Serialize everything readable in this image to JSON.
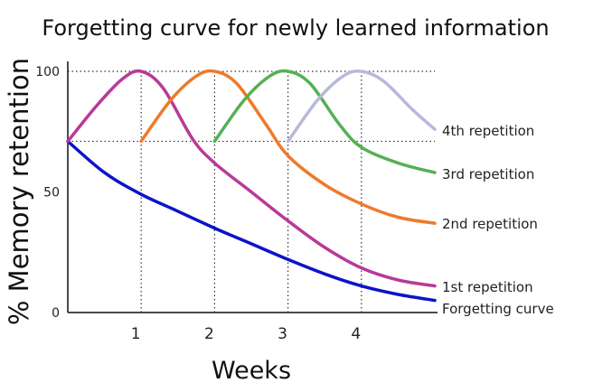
{
  "chart_data": {
    "type": "line",
    "title": "Forgetting curve for newly learned information",
    "xlabel": "Weeks",
    "ylabel": "% Memory retention",
    "xlim": [
      0,
      5
    ],
    "ylim": [
      0,
      100
    ],
    "xticks": [
      "1",
      "2",
      "3",
      "4"
    ],
    "yticks": [
      "0",
      "50",
      "100"
    ],
    "grid": "dotted reference lines",
    "series": [
      {
        "name": "Forgetting curve",
        "color": "#0a14c8",
        "points": [
          [
            0,
            71
          ],
          [
            0.5,
            58
          ],
          [
            1,
            49
          ],
          [
            1.5,
            42
          ],
          [
            2,
            35
          ],
          [
            2.5,
            28.5
          ],
          [
            3,
            22
          ],
          [
            3.5,
            16
          ],
          [
            4,
            11
          ],
          [
            4.5,
            7.5
          ],
          [
            5,
            5
          ]
        ]
      },
      {
        "name": "1st repetition",
        "color": "#b83a98",
        "points": [
          [
            0,
            71
          ],
          [
            0.4,
            86
          ],
          [
            0.75,
            97
          ],
          [
            1,
            100
          ],
          [
            1.3,
            93
          ],
          [
            1.7,
            72
          ],
          [
            2,
            62
          ],
          [
            2.5,
            50
          ],
          [
            3,
            38
          ],
          [
            3.5,
            27
          ],
          [
            4,
            18.5
          ],
          [
            4.5,
            13.5
          ],
          [
            5,
            11
          ]
        ]
      },
      {
        "name": "2nd repetition",
        "color": "#ee7a2a",
        "points": [
          [
            1,
            71
          ],
          [
            1.4,
            88
          ],
          [
            1.75,
            98
          ],
          [
            2,
            100
          ],
          [
            2.3,
            95
          ],
          [
            2.7,
            78
          ],
          [
            3,
            65
          ],
          [
            3.5,
            53
          ],
          [
            4,
            45
          ],
          [
            4.5,
            39.5
          ],
          [
            5,
            37
          ]
        ]
      },
      {
        "name": "3rd repetition",
        "color": "#55b055",
        "points": [
          [
            2,
            71
          ],
          [
            2.4,
            88
          ],
          [
            2.75,
            98
          ],
          [
            3,
            100
          ],
          [
            3.3,
            95
          ],
          [
            3.7,
            78
          ],
          [
            4,
            68.5
          ],
          [
            4.5,
            62
          ],
          [
            5,
            58
          ]
        ]
      },
      {
        "name": "4th repetition",
        "color": "#b8b8dc",
        "points": [
          [
            3,
            71
          ],
          [
            3.4,
            88
          ],
          [
            3.75,
            98
          ],
          [
            4,
            100
          ],
          [
            4.3,
            96
          ],
          [
            4.7,
            84
          ],
          [
            5,
            76
          ]
        ]
      }
    ],
    "guide_levels": [
      100,
      71
    ],
    "guide_weeks": [
      1,
      2,
      3,
      4
    ]
  }
}
